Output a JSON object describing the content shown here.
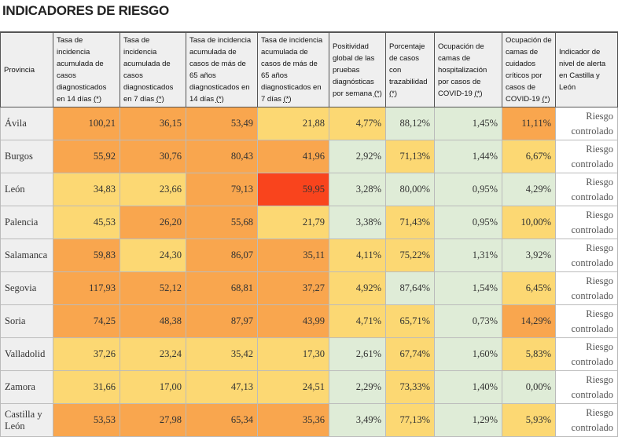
{
  "title": "INDICADORES DE RIESGO",
  "colors": {
    "O": "#f9a64e",
    "Y": "#fcd873",
    "G": "#dfecd7",
    "R": "#f9441d"
  },
  "headers": [
    "Provincia",
    "Tasa de incidencia acumulada de casos diagnosticados en 14 días",
    "Tasa de incidencia acumulada de casos diagnosticados en 7 días",
    "Tasa de incidencia acumulada de casos de más de 65 años diagnosticados en 14 días",
    "Tasa de incidencia acumulada de casos de más de 65 años diagnosticados en 7 días",
    "Positividad global de las pruebas diagnósticas por semana",
    "Porcentaje de casos con trazabilidad",
    "Ocupación de camas de hospitalización por casos de COVID-19",
    "Ocupación de camas de cuidados críticos por casos de COVID-19",
    "Indicador de nivel de alerta en Castilla y León"
  ],
  "footnote_mark": "(*)",
  "rows": [
    {
      "province": "Ávila",
      "values": [
        "100,21",
        "36,15",
        "53,49",
        "21,88",
        "4,77%",
        "88,12%",
        "1,45%",
        "11,11%"
      ],
      "levels": [
        "O",
        "O",
        "O",
        "Y",
        "Y",
        "G",
        "G",
        "O"
      ],
      "status1": "Riesgo",
      "status2": "controlado"
    },
    {
      "province": "Burgos",
      "values": [
        "55,92",
        "30,76",
        "80,43",
        "41,96",
        "2,92%",
        "71,13%",
        "1,44%",
        "6,67%"
      ],
      "levels": [
        "O",
        "O",
        "O",
        "O",
        "G",
        "Y",
        "G",
        "Y"
      ],
      "status1": "Riesgo",
      "status2": "controlado"
    },
    {
      "province": "León",
      "values": [
        "34,83",
        "23,66",
        "79,13",
        "59,95",
        "3,28%",
        "80,00%",
        "0,95%",
        "4,29%"
      ],
      "levels": [
        "Y",
        "Y",
        "O",
        "R",
        "G",
        "G",
        "G",
        "G"
      ],
      "status1": "Riesgo",
      "status2": "controlado"
    },
    {
      "province": "Palencia",
      "values": [
        "45,53",
        "26,20",
        "55,68",
        "21,79",
        "3,38%",
        "71,43%",
        "0,95%",
        "10,00%"
      ],
      "levels": [
        "Y",
        "O",
        "O",
        "Y",
        "G",
        "Y",
        "G",
        "Y"
      ],
      "status1": "Riesgo",
      "status2": "controlado"
    },
    {
      "province": "Salamanca",
      "values": [
        "59,83",
        "24,30",
        "86,07",
        "35,11",
        "4,11%",
        "75,22%",
        "1,31%",
        "3,92%"
      ],
      "levels": [
        "O",
        "Y",
        "O",
        "O",
        "Y",
        "Y",
        "G",
        "G"
      ],
      "status1": "Riesgo",
      "status2": "controlado"
    },
    {
      "province": "Segovia",
      "values": [
        "117,93",
        "52,12",
        "68,81",
        "37,27",
        "4,92%",
        "87,64%",
        "1,54%",
        "6,45%"
      ],
      "levels": [
        "O",
        "O",
        "O",
        "O",
        "Y",
        "G",
        "G",
        "Y"
      ],
      "status1": "Riesgo",
      "status2": "controlado"
    },
    {
      "province": "Soria",
      "values": [
        "74,25",
        "48,38",
        "87,97",
        "43,99",
        "4,71%",
        "65,71%",
        "0,73%",
        "14,29%"
      ],
      "levels": [
        "O",
        "O",
        "O",
        "O",
        "Y",
        "Y",
        "G",
        "O"
      ],
      "status1": "Riesgo",
      "status2": "controlado"
    },
    {
      "province": "Valladolid",
      "values": [
        "37,26",
        "23,24",
        "35,42",
        "17,30",
        "2,61%",
        "67,74%",
        "1,60%",
        "5,83%"
      ],
      "levels": [
        "Y",
        "Y",
        "Y",
        "Y",
        "G",
        "Y",
        "G",
        "Y"
      ],
      "status1": "Riesgo",
      "status2": "controlado"
    },
    {
      "province": "Zamora",
      "values": [
        "31,66",
        "17,00",
        "47,13",
        "24,51",
        "2,29%",
        "73,33%",
        "1,40%",
        "0,00%"
      ],
      "levels": [
        "Y",
        "Y",
        "Y",
        "Y",
        "G",
        "Y",
        "G",
        "G"
      ],
      "status1": "Riesgo",
      "status2": "controlado"
    },
    {
      "province": "Castilla y León",
      "values": [
        "53,53",
        "27,98",
        "65,34",
        "35,36",
        "3,49%",
        "77,13%",
        "1,29%",
        "5,93%"
      ],
      "levels": [
        "O",
        "O",
        "O",
        "O",
        "G",
        "Y",
        "G",
        "Y"
      ],
      "status1": "Riesgo",
      "status2": "controlado"
    }
  ]
}
